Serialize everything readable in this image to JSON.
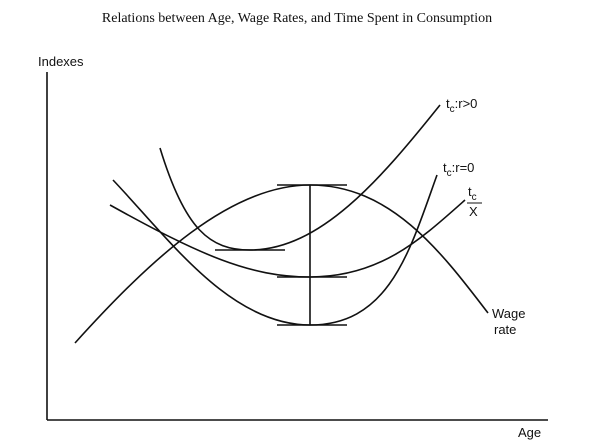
{
  "header": {
    "title": "Relations between Age, Wage Rates, and Time Spent in Consumption"
  },
  "axes": {
    "y_label": "Indexes",
    "x_label": "Age"
  },
  "curves": [
    {
      "main": "t",
      "sub": "c",
      "rest": ":r>0"
    },
    {
      "main": "t",
      "sub": "c",
      "rest": ":r=0"
    },
    {
      "main": "t",
      "sub": "c",
      "denominator": "X"
    },
    {
      "line1": "Wage",
      "line2": "rate"
    }
  ]
}
